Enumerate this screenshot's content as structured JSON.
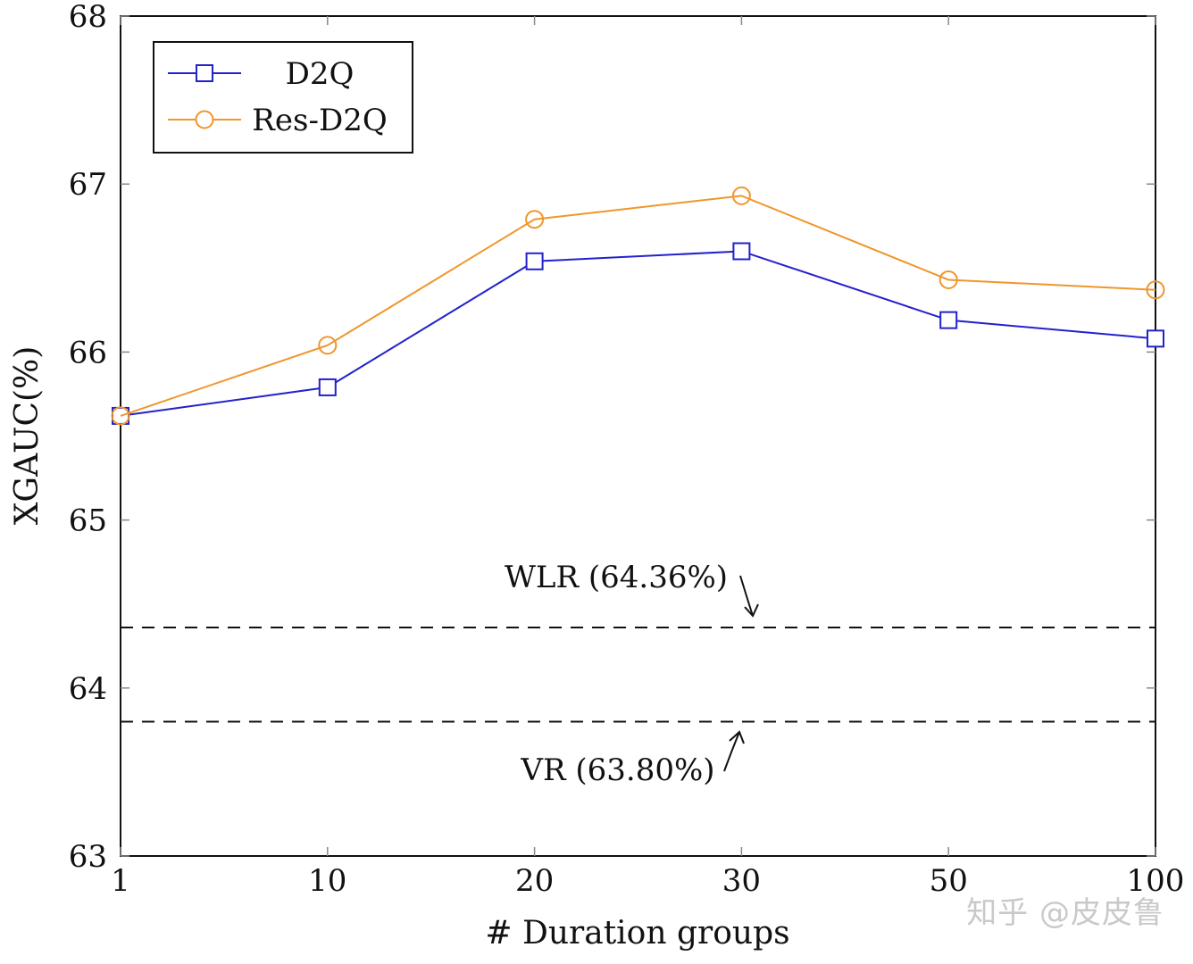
{
  "chart_data": {
    "type": "line",
    "title": "",
    "xlabel": "# Duration groups",
    "ylabel": "XGAUC(%)",
    "categories": [
      "1",
      "10",
      "20",
      "30",
      "50",
      "100"
    ],
    "ylim": [
      63,
      68
    ],
    "yticks": [
      "63",
      "64",
      "65",
      "66",
      "67",
      "68"
    ],
    "grid": false,
    "legend_position": "top-left",
    "series": [
      {
        "name": "D2Q",
        "color": "#2222cc",
        "marker": "square",
        "values": [
          65.62,
          65.79,
          66.54,
          66.6,
          66.19,
          66.08
        ]
      },
      {
        "name": "Res-D2Q",
        "color": "#f0962b",
        "marker": "circle",
        "values": [
          65.62,
          66.04,
          66.79,
          66.93,
          66.43,
          66.37
        ]
      }
    ],
    "reference_lines": [
      {
        "label": "WLR (64.36%)",
        "value": 64.36,
        "style": "dashed",
        "color": "#111111",
        "label_side": "above"
      },
      {
        "label": "VR (63.80%)",
        "value": 63.8,
        "style": "dashed",
        "color": "#111111",
        "label_side": "below"
      }
    ]
  },
  "watermark": "知乎 @皮皮鲁"
}
